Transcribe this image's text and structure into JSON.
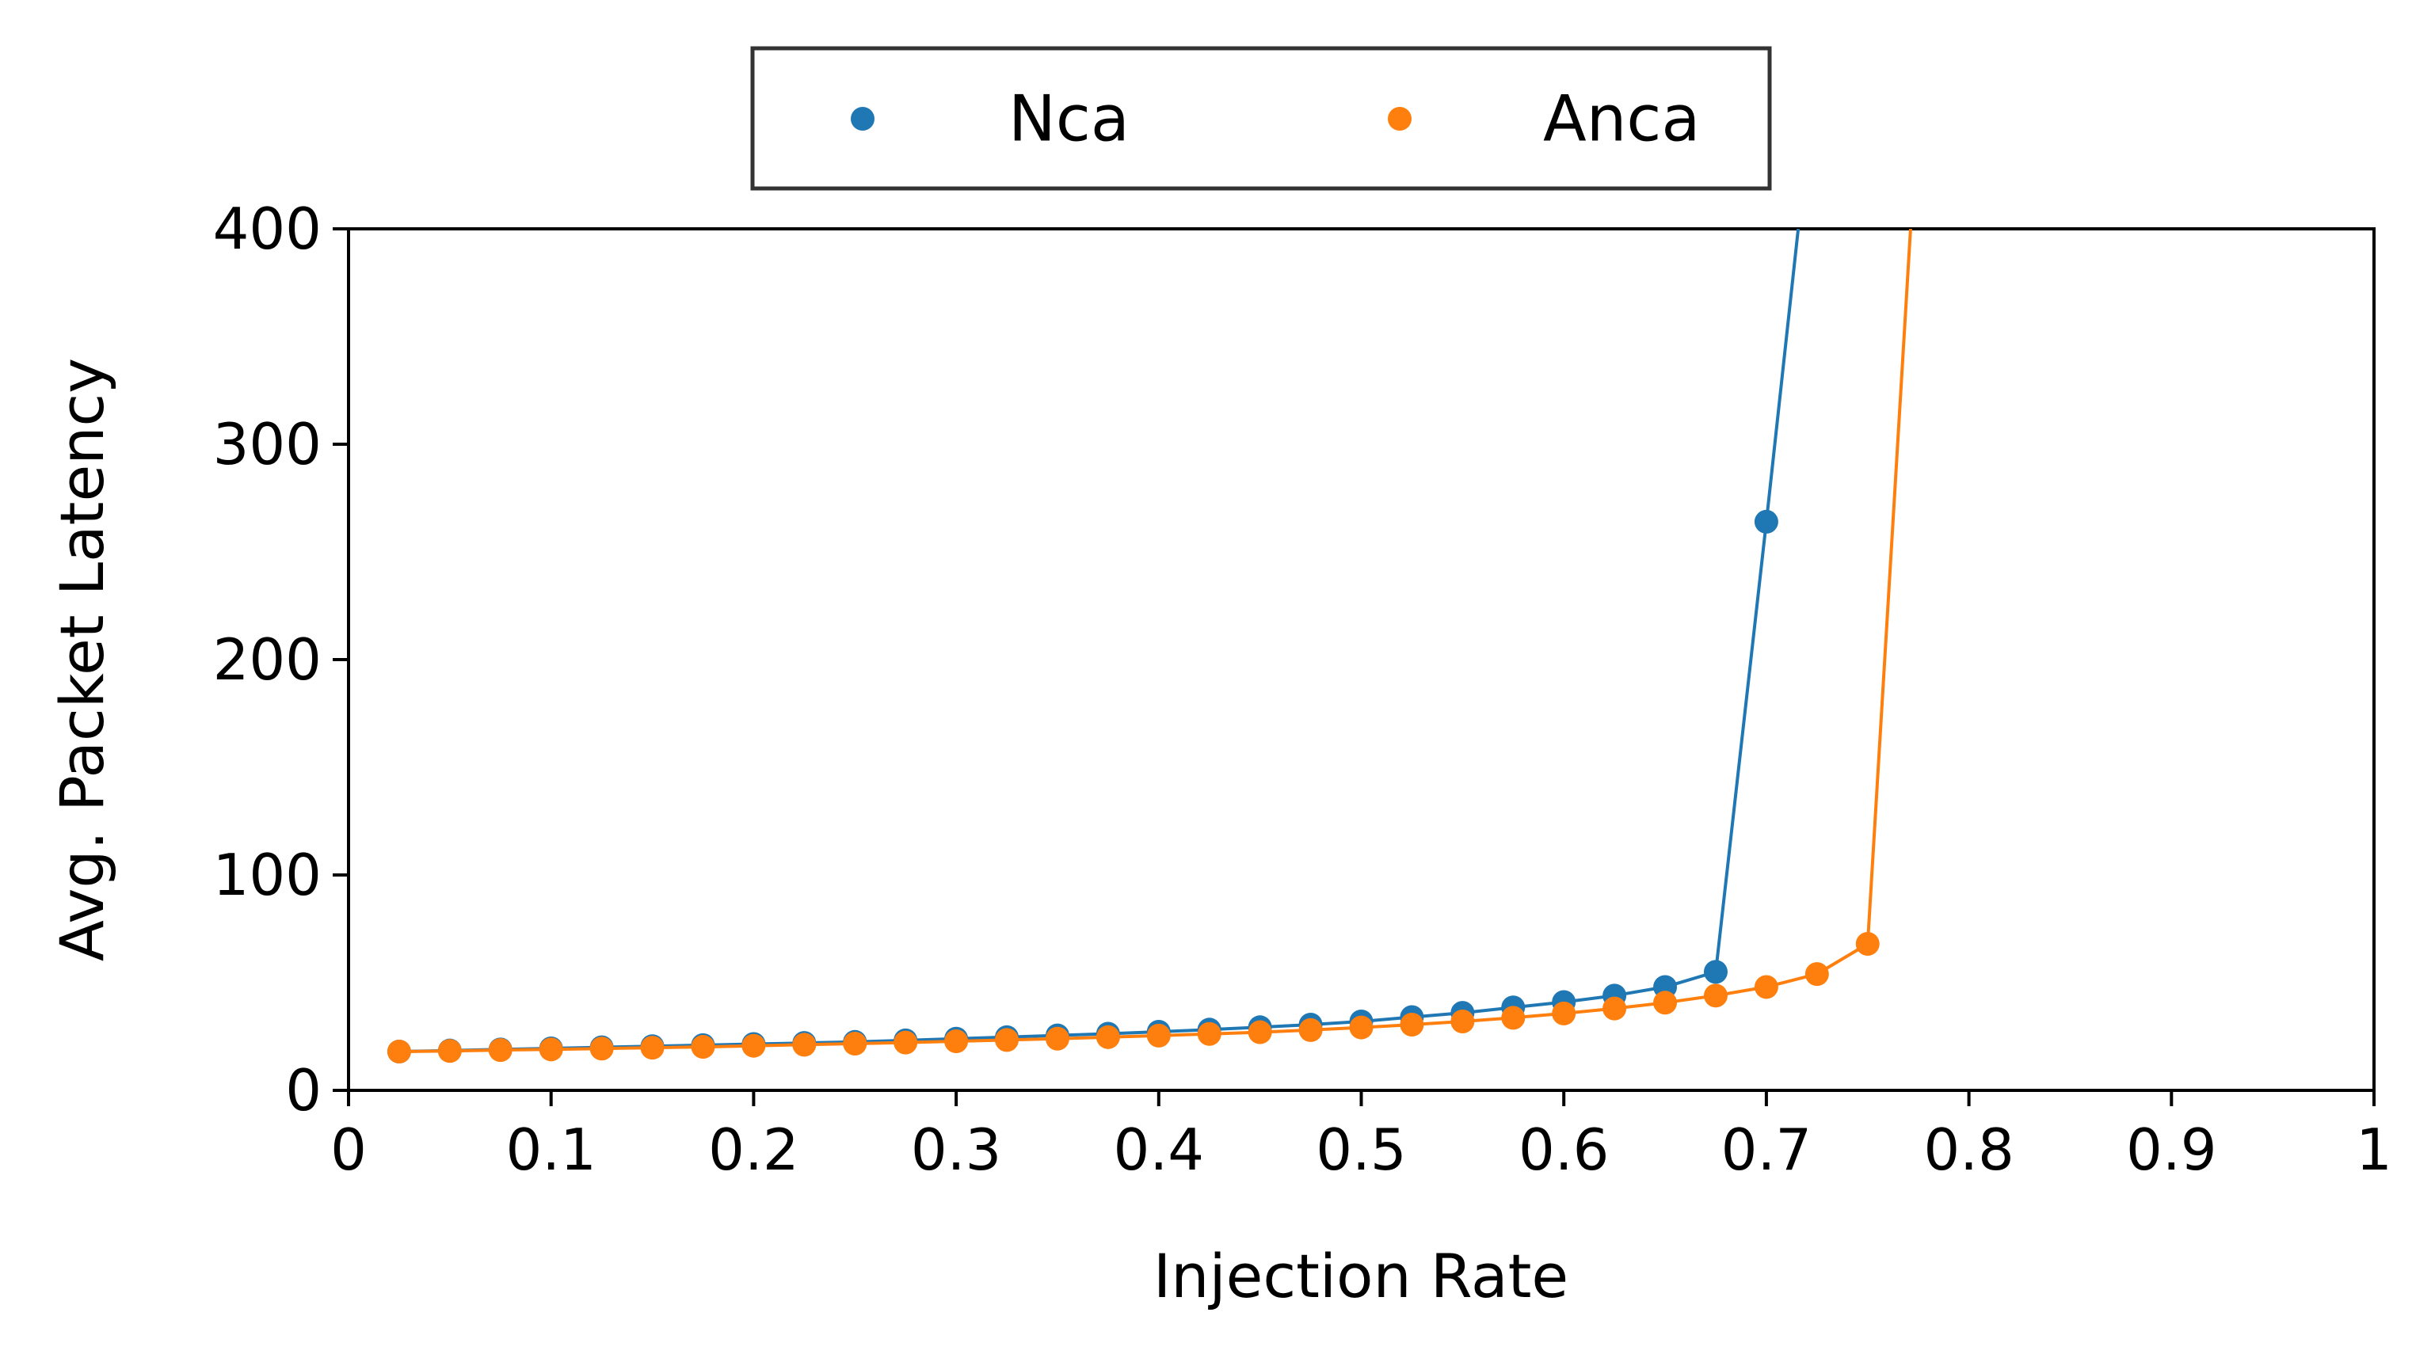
{
  "chart_data": {
    "type": "line",
    "xlabel": "Injection Rate",
    "ylabel": "Avg. Packet Latency",
    "xlim": [
      0,
      1
    ],
    "ylim": [
      0,
      400
    ],
    "xticks": [
      0,
      0.1,
      0.2,
      0.3,
      0.4,
      0.5,
      0.6,
      0.7,
      0.8,
      0.9,
      1
    ],
    "xtick_labels": [
      "0",
      "0.1",
      "0.2",
      "0.3",
      "0.4",
      "0.5",
      "0.6",
      "0.7",
      "0.8",
      "0.9",
      "1"
    ],
    "yticks": [
      0,
      100,
      200,
      300,
      400
    ],
    "ytick_labels": [
      "0",
      "100",
      "200",
      "300",
      "400"
    ],
    "grid": false,
    "legend_position": "top-center, outside plot",
    "series": [
      {
        "name": "Nca",
        "color": "#1f77b4",
        "points": [
          [
            0.025,
            18
          ],
          [
            0.05,
            18.5
          ],
          [
            0.075,
            19
          ],
          [
            0.1,
            19.5
          ],
          [
            0.125,
            20
          ],
          [
            0.15,
            20.5
          ],
          [
            0.175,
            21
          ],
          [
            0.2,
            21.5
          ],
          [
            0.225,
            22
          ],
          [
            0.25,
            22.5
          ],
          [
            0.275,
            23.2
          ],
          [
            0.3,
            24
          ],
          [
            0.325,
            24.7
          ],
          [
            0.35,
            25.5
          ],
          [
            0.375,
            26.3
          ],
          [
            0.4,
            27.2
          ],
          [
            0.425,
            28.2
          ],
          [
            0.45,
            29.3
          ],
          [
            0.475,
            30.5
          ],
          [
            0.5,
            32
          ],
          [
            0.525,
            34
          ],
          [
            0.55,
            36
          ],
          [
            0.575,
            38.5
          ],
          [
            0.6,
            41
          ],
          [
            0.625,
            44
          ],
          [
            0.65,
            48
          ],
          [
            0.675,
            55
          ],
          [
            0.7,
            264
          ],
          [
            0.725,
            480
          ]
        ]
      },
      {
        "name": "Anca",
        "color": "#ff7f0e",
        "points": [
          [
            0.025,
            18
          ],
          [
            0.05,
            18.3
          ],
          [
            0.075,
            18.7
          ],
          [
            0.1,
            19
          ],
          [
            0.125,
            19.4
          ],
          [
            0.15,
            19.8
          ],
          [
            0.175,
            20.2
          ],
          [
            0.2,
            20.7
          ],
          [
            0.225,
            21.2
          ],
          [
            0.25,
            21.7
          ],
          [
            0.275,
            22.2
          ],
          [
            0.3,
            22.8
          ],
          [
            0.325,
            23.4
          ],
          [
            0.35,
            24
          ],
          [
            0.375,
            24.7
          ],
          [
            0.4,
            25.4
          ],
          [
            0.425,
            26.2
          ],
          [
            0.45,
            27
          ],
          [
            0.475,
            28
          ],
          [
            0.5,
            29.2
          ],
          [
            0.525,
            30.5
          ],
          [
            0.55,
            32
          ],
          [
            0.575,
            33.7
          ],
          [
            0.6,
            35.7
          ],
          [
            0.625,
            38
          ],
          [
            0.65,
            40.7
          ],
          [
            0.675,
            44
          ],
          [
            0.7,
            48
          ],
          [
            0.725,
            54
          ],
          [
            0.75,
            68
          ],
          [
            0.775,
            460
          ]
        ]
      }
    ]
  }
}
